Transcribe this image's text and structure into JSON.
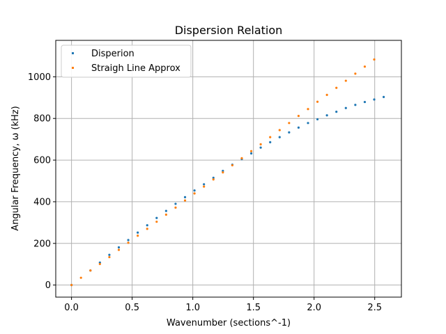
{
  "chart_data": {
    "type": "scatter",
    "title": "Dispersion Relation",
    "xlabel": "Wavenumber (sections^-1)",
    "ylabel": "Angular Frequency, ω (kHz)",
    "xlim": [
      -0.13,
      2.72
    ],
    "ylim": [
      -58,
      1175
    ],
    "xticks": [
      0.0,
      0.5,
      1.0,
      1.5,
      2.0,
      2.5
    ],
    "xtick_labels": [
      "0.0",
      "0.5",
      "1.0",
      "1.5",
      "2.0",
      "2.5"
    ],
    "yticks": [
      0,
      200,
      400,
      600,
      800,
      1000
    ],
    "ytick_labels": [
      "0",
      "200",
      "400",
      "600",
      "800",
      "1000"
    ],
    "grid": true,
    "legend": "upper-left",
    "series": [
      {
        "name": "Disperion",
        "color": "#1f77b4",
        "x": [
          0.0,
          0.156,
          0.234,
          0.312,
          0.39,
          0.468,
          0.546,
          0.624,
          0.702,
          0.78,
          0.858,
          0.936,
          1.014,
          1.092,
          1.17,
          1.248,
          1.326,
          1.404,
          1.482,
          1.56,
          1.638,
          1.716,
          1.794,
          1.872,
          1.95,
          2.028,
          2.106,
          2.184,
          2.262,
          2.34,
          2.418,
          2.496,
          2.574
        ],
        "y": [
          0,
          70,
          108,
          145,
          181,
          216,
          252,
          287,
          322,
          356,
          390,
          422,
          454,
          484,
          515,
          548,
          578,
          605,
          632,
          660,
          686,
          710,
          733,
          756,
          778,
          796,
          815,
          832,
          850,
          865,
          879,
          891,
          903
        ]
      },
      {
        "name": "Straigh Line Approx",
        "color": "#ff7f0e",
        "x": [
          0.0,
          0.078,
          0.156,
          0.234,
          0.312,
          0.39,
          0.468,
          0.546,
          0.624,
          0.702,
          0.78,
          0.858,
          0.936,
          1.014,
          1.092,
          1.17,
          1.248,
          1.326,
          1.404,
          1.482,
          1.56,
          1.638,
          1.716,
          1.794,
          1.872,
          1.95,
          2.028,
          2.106,
          2.184,
          2.262,
          2.34,
          2.418,
          2.496
        ],
        "y": [
          0,
          35,
          70,
          101,
          134,
          169,
          203,
          237,
          270,
          304,
          338,
          372,
          406,
          440,
          473,
          507,
          541,
          575,
          609,
          643,
          676,
          710,
          744,
          778,
          812,
          845,
          880,
          913,
          947,
          981,
          1015,
          1049,
          1083
        ]
      }
    ]
  }
}
